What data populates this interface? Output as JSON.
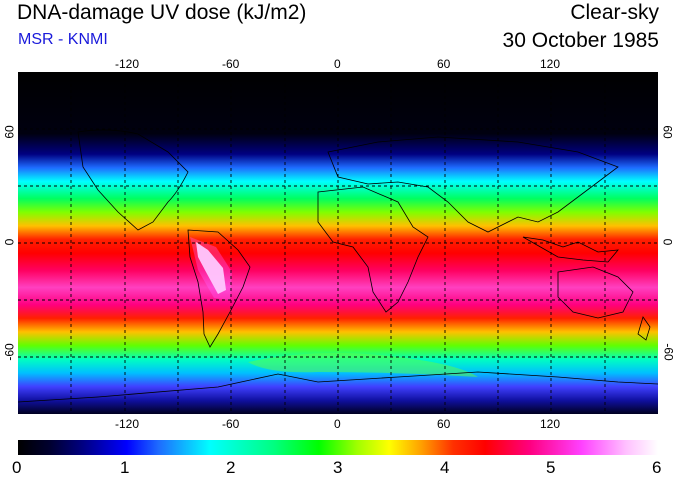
{
  "header": {
    "title": "DNA-damage UV dose (kJ/m2)",
    "source": "MSR - KNMI",
    "condition": "Clear-sky",
    "date": "30 October 1985"
  },
  "map": {
    "lon_ticks": [
      "-120",
      "-60",
      "0",
      "60",
      "120"
    ],
    "lat_ticks": [
      "60",
      "0",
      "-60"
    ],
    "projection": "equirectangular",
    "lon_range": [
      -180,
      180
    ],
    "lat_range": [
      -90,
      90
    ],
    "gridline_style": "dashed",
    "gridline_spacing_deg": 30,
    "colors": {
      "grid": "#000000",
      "coastline": "#000000",
      "max_dose": "#ffffff"
    }
  },
  "colorbar": {
    "labels": [
      "0",
      "1",
      "2",
      "3",
      "4",
      "5",
      "6"
    ],
    "min": 0,
    "max": 6,
    "colors": [
      "#000000",
      "#0000ff",
      "#00ffff",
      "#00ff00",
      "#ffff00",
      "#ff0000",
      "#ff40ff",
      "#ffffff"
    ]
  }
}
